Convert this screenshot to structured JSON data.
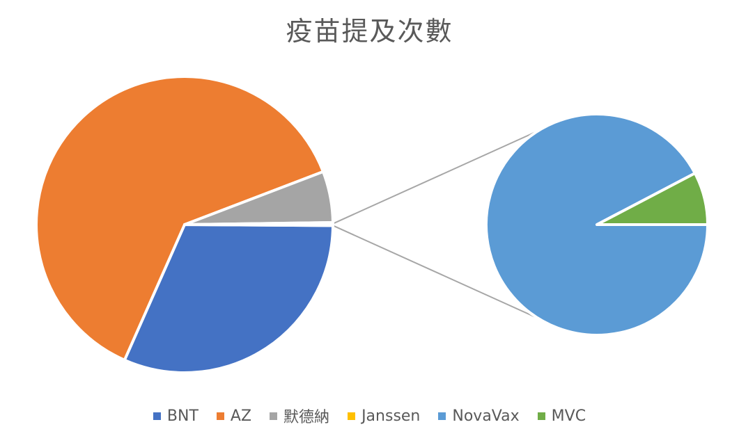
{
  "chart_data": {
    "type": "pie",
    "subtype": "pie-of-pie",
    "title": "疫苗提及次數",
    "categories": [
      "BNT",
      "AZ",
      "默德納",
      "Janssen",
      "NovaVax",
      "MVC"
    ],
    "values": [
      31,
      61.5,
      5.5,
      0.12,
      0.18,
      0.015
    ],
    "colors": [
      "#4472C4",
      "#ED7D31",
      "#A5A5A5",
      "#FFC000",
      "#5B9BD5",
      "#70AD47"
    ],
    "secondary_categories": [
      "NovaVax",
      "MVC"
    ],
    "legend_position": "bottom"
  }
}
